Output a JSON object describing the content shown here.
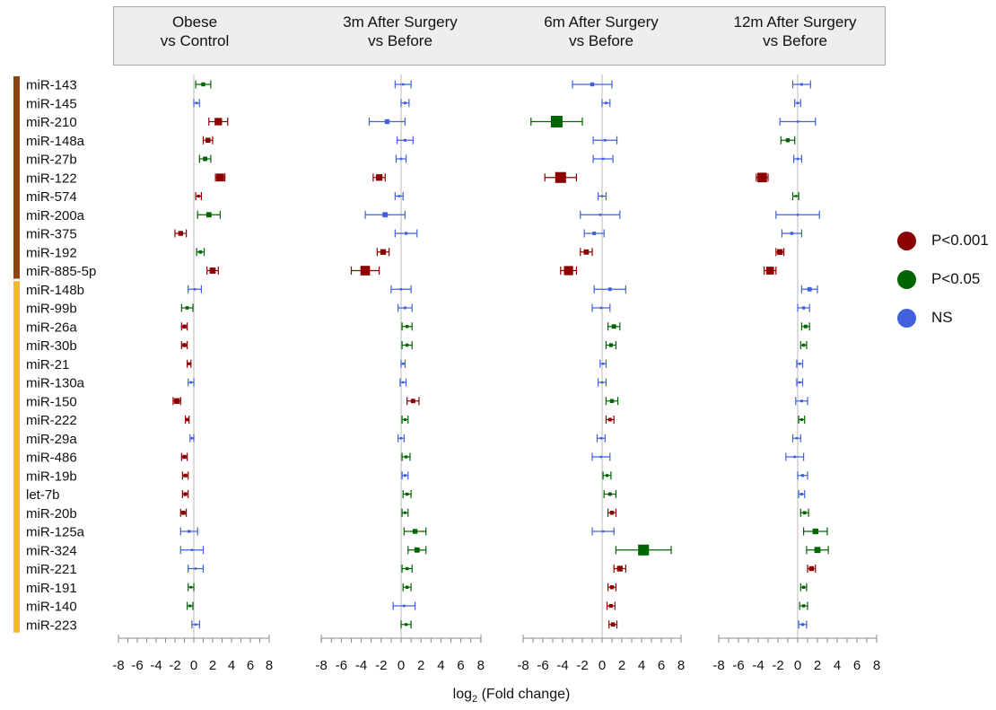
{
  "colors": {
    "p001": "#8b0000",
    "p05": "#006400",
    "ns": "#4060dd",
    "group1_bar": "#8b4513",
    "group2_bar": "#f4b731"
  },
  "panels": [
    {
      "line1": "Obese",
      "line2": "vs Control"
    },
    {
      "line1": "3m After Surgery",
      "line2": "vs Before"
    },
    {
      "line1": "6m After Surgery",
      "line2": "vs Before"
    },
    {
      "line1": "12m After Surgery",
      "line2": "vs Before"
    }
  ],
  "legend": [
    {
      "label": "P<0.001",
      "key": "p001"
    },
    {
      "label": "P<0.05",
      "key": "p05"
    },
    {
      "label": "NS",
      "key": "ns"
    }
  ],
  "chart_data": {
    "type": "forest",
    "xlabel_main": "log",
    "xlabel_sub": "2",
    "xlabel_rest": " (Fold change)",
    "xlim": [
      -8,
      8
    ],
    "xticks": [
      "-8",
      "-6",
      "-4",
      "-2",
      "0",
      "2",
      "4",
      "6",
      "8"
    ],
    "mirnas": [
      "miR-143",
      "miR-145",
      "miR-210",
      "miR-148a",
      "miR-27b",
      "miR-122",
      "miR-574",
      "miR-200a",
      "miR-375",
      "miR-192",
      "miR-885-5p",
      "miR-148b",
      "miR-99b",
      "miR-26a",
      "miR-30b",
      "miR-21",
      "miR-130a",
      "miR-150",
      "miR-222",
      "miR-29a",
      "miR-486",
      "miR-19b",
      "let-7b",
      "miR-20b",
      "miR-125a",
      "miR-324",
      "miR-221",
      "miR-191",
      "miR-140",
      "miR-223"
    ],
    "groups": [
      {
        "start": 0,
        "end": 10,
        "color_key": "group1_bar"
      },
      {
        "start": 11,
        "end": 29,
        "color_key": "group2_bar"
      }
    ],
    "series": [
      {
        "comparison": 0,
        "points": [
          [
            1.0,
            0.2,
            1.8,
            "p05"
          ],
          [
            0.3,
            0.0,
            0.6,
            "ns"
          ],
          [
            2.6,
            1.6,
            3.6,
            "p001"
          ],
          [
            1.5,
            1.0,
            2.0,
            "p001"
          ],
          [
            1.2,
            0.6,
            1.8,
            "p05"
          ],
          [
            2.8,
            2.3,
            3.3,
            "p001"
          ],
          [
            0.5,
            0.2,
            0.8,
            "p001"
          ],
          [
            1.6,
            0.4,
            2.8,
            "p05"
          ],
          [
            -1.4,
            -2.0,
            -0.8,
            "p001"
          ],
          [
            0.7,
            0.3,
            1.1,
            "p05"
          ],
          [
            2.0,
            1.4,
            2.6,
            "p001"
          ],
          [
            0.1,
            -0.6,
            0.8,
            "ns"
          ],
          [
            -0.7,
            -1.3,
            -0.1,
            "p05"
          ],
          [
            -1.0,
            -1.3,
            -0.7,
            "p001"
          ],
          [
            -1.0,
            -1.3,
            -0.7,
            "p001"
          ],
          [
            -0.5,
            -0.7,
            -0.3,
            "p001"
          ],
          [
            -0.3,
            -0.6,
            0.0,
            "ns"
          ],
          [
            -1.8,
            -2.2,
            -1.4,
            "p001"
          ],
          [
            -0.7,
            -0.9,
            -0.5,
            "p001"
          ],
          [
            -0.2,
            -0.4,
            0.0,
            "ns"
          ],
          [
            -1.0,
            -1.3,
            -0.7,
            "p001"
          ],
          [
            -0.9,
            -1.2,
            -0.6,
            "p001"
          ],
          [
            -0.9,
            -1.2,
            -0.6,
            "p001"
          ],
          [
            -1.1,
            -1.4,
            -0.8,
            "p001"
          ],
          [
            -0.5,
            -1.4,
            0.4,
            "ns"
          ],
          [
            -0.2,
            -1.4,
            1.0,
            "ns"
          ],
          [
            0.2,
            -0.6,
            1.0,
            "ns"
          ],
          [
            -0.3,
            -0.6,
            0.0,
            "p05"
          ],
          [
            -0.4,
            -0.7,
            -0.1,
            "p05"
          ],
          [
            0.2,
            -0.2,
            0.6,
            "ns"
          ]
        ]
      },
      {
        "comparison": 1,
        "points": [
          [
            0.2,
            -0.6,
            1.0,
            "ns"
          ],
          [
            0.4,
            0.0,
            0.8,
            "ns"
          ],
          [
            -1.4,
            -3.2,
            0.4,
            "ns"
          ],
          [
            0.4,
            -0.4,
            1.2,
            "ns"
          ],
          [
            0.0,
            -0.5,
            0.5,
            "ns"
          ],
          [
            -2.2,
            -2.8,
            -1.6,
            "p001"
          ],
          [
            -0.2,
            -0.6,
            0.2,
            "ns"
          ],
          [
            -1.6,
            -3.6,
            0.4,
            "ns"
          ],
          [
            0.5,
            -0.6,
            1.6,
            "ns"
          ],
          [
            -1.8,
            -2.4,
            -1.2,
            "p001"
          ],
          [
            -3.6,
            -5.0,
            -2.2,
            "p001"
          ],
          [
            0.0,
            -1.0,
            1.0,
            "ns"
          ],
          [
            0.4,
            -0.3,
            1.1,
            "ns"
          ],
          [
            0.6,
            0.1,
            1.1,
            "p05"
          ],
          [
            0.6,
            0.1,
            1.1,
            "p05"
          ],
          [
            0.2,
            0.0,
            0.4,
            "ns"
          ],
          [
            0.2,
            -0.1,
            0.5,
            "ns"
          ],
          [
            1.2,
            0.6,
            1.8,
            "p001"
          ],
          [
            0.4,
            0.1,
            0.7,
            "p05"
          ],
          [
            0.0,
            -0.3,
            0.3,
            "ns"
          ],
          [
            0.5,
            0.1,
            0.9,
            "p05"
          ],
          [
            0.4,
            0.1,
            0.7,
            "ns"
          ],
          [
            0.6,
            0.2,
            1.0,
            "p05"
          ],
          [
            0.4,
            0.1,
            0.7,
            "p05"
          ],
          [
            1.4,
            0.3,
            2.5,
            "p05"
          ],
          [
            1.6,
            0.7,
            2.5,
            "p05"
          ],
          [
            0.6,
            0.1,
            1.1,
            "p05"
          ],
          [
            0.6,
            0.2,
            1.0,
            "p05"
          ],
          [
            0.3,
            -0.8,
            1.4,
            "ns"
          ],
          [
            0.5,
            0.0,
            1.0,
            "p05"
          ]
        ]
      },
      {
        "comparison": 2,
        "points": [
          [
            -1.0,
            -3.0,
            1.0,
            "ns"
          ],
          [
            0.4,
            0.0,
            0.8,
            "ns"
          ],
          [
            -4.6,
            -7.2,
            -2.0,
            "p05"
          ],
          [
            0.3,
            -0.9,
            1.5,
            "ns"
          ],
          [
            0.1,
            -0.9,
            1.1,
            "ns"
          ],
          [
            -4.2,
            -5.8,
            -2.6,
            "p001"
          ],
          [
            0.0,
            -0.4,
            0.4,
            "ns"
          ],
          [
            -0.2,
            -2.2,
            1.8,
            "ns"
          ],
          [
            -0.8,
            -1.8,
            0.2,
            "ns"
          ],
          [
            -1.6,
            -2.2,
            -1.0,
            "p001"
          ],
          [
            -3.4,
            -4.2,
            -2.6,
            "p001"
          ],
          [
            0.8,
            -0.8,
            2.4,
            "ns"
          ],
          [
            -0.1,
            -1.0,
            0.8,
            "ns"
          ],
          [
            1.2,
            0.6,
            1.8,
            "p05"
          ],
          [
            0.9,
            0.4,
            1.4,
            "p05"
          ],
          [
            0.1,
            -0.2,
            0.4,
            "ns"
          ],
          [
            0.0,
            -0.4,
            0.4,
            "ns"
          ],
          [
            1.0,
            0.4,
            1.6,
            "p05"
          ],
          [
            0.8,
            0.4,
            1.2,
            "p001"
          ],
          [
            -0.1,
            -0.5,
            0.3,
            "ns"
          ],
          [
            -0.1,
            -1.0,
            0.8,
            "ns"
          ],
          [
            0.5,
            0.1,
            0.9,
            "p05"
          ],
          [
            0.8,
            0.2,
            1.4,
            "p05"
          ],
          [
            1.0,
            0.6,
            1.4,
            "p001"
          ],
          [
            0.1,
            -1.0,
            1.2,
            "ns"
          ],
          [
            4.2,
            1.4,
            7.0,
            "p05"
          ],
          [
            1.8,
            1.2,
            2.4,
            "p001"
          ],
          [
            1.0,
            0.6,
            1.4,
            "p001"
          ],
          [
            0.9,
            0.5,
            1.3,
            "p001"
          ],
          [
            1.1,
            0.7,
            1.5,
            "p001"
          ]
        ]
      },
      {
        "comparison": 3,
        "points": [
          [
            0.4,
            -0.5,
            1.3,
            "ns"
          ],
          [
            0.0,
            -0.3,
            0.3,
            "ns"
          ],
          [
            0.0,
            -1.8,
            1.8,
            "ns"
          ],
          [
            -1.0,
            -1.7,
            -0.3,
            "p05"
          ],
          [
            0.0,
            -0.4,
            0.4,
            "ns"
          ],
          [
            -3.6,
            -4.2,
            -3.0,
            "p001"
          ],
          [
            -0.2,
            -0.5,
            0.1,
            "p05"
          ],
          [
            0.0,
            -2.2,
            2.2,
            "ns"
          ],
          [
            -0.6,
            -1.6,
            0.4,
            "ns"
          ],
          [
            -1.8,
            -2.2,
            -1.4,
            "p001"
          ],
          [
            -2.8,
            -3.4,
            -2.2,
            "p001"
          ],
          [
            1.2,
            0.4,
            2.0,
            "ns"
          ],
          [
            0.6,
            0.0,
            1.2,
            "ns"
          ],
          [
            0.8,
            0.4,
            1.2,
            "p05"
          ],
          [
            0.6,
            0.3,
            0.9,
            "p05"
          ],
          [
            0.2,
            -0.1,
            0.5,
            "ns"
          ],
          [
            0.2,
            -0.1,
            0.5,
            "ns"
          ],
          [
            0.4,
            -0.2,
            1.0,
            "ns"
          ],
          [
            0.4,
            0.1,
            0.7,
            "p05"
          ],
          [
            -0.1,
            -0.5,
            0.3,
            "ns"
          ],
          [
            -0.3,
            -1.2,
            0.6,
            "ns"
          ],
          [
            0.5,
            0.0,
            1.0,
            "ns"
          ],
          [
            0.4,
            0.1,
            0.7,
            "ns"
          ],
          [
            0.7,
            0.3,
            1.1,
            "p05"
          ],
          [
            1.8,
            0.6,
            3.0,
            "p05"
          ],
          [
            2.0,
            0.9,
            3.1,
            "p05"
          ],
          [
            1.4,
            1.0,
            1.8,
            "p001"
          ],
          [
            0.6,
            0.3,
            0.9,
            "p05"
          ],
          [
            0.6,
            0.2,
            1.0,
            "p05"
          ],
          [
            0.5,
            0.1,
            0.9,
            "ns"
          ]
        ]
      }
    ]
  }
}
